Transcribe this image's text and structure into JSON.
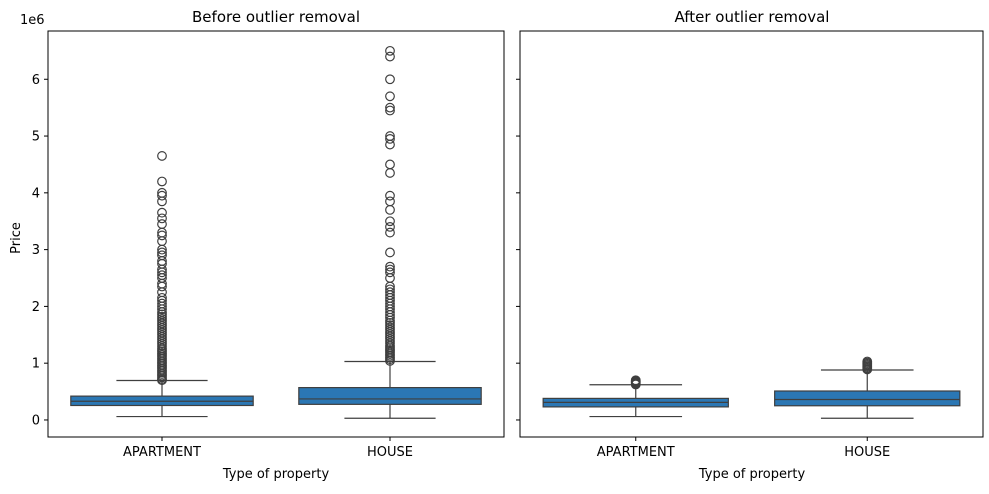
{
  "chart_data": [
    {
      "type": "box",
      "title": "Before outlier removal",
      "xlabel": "Type of property",
      "ylabel": "Price",
      "y_scale_label": "1e6",
      "categories": [
        "APARTMENT",
        "HOUSE"
      ],
      "ylim": [
        -300000,
        6850000
      ],
      "yticks": [
        0,
        1000000,
        2000000,
        3000000,
        4000000,
        5000000,
        6000000
      ],
      "ytick_labels": [
        "0",
        "1",
        "2",
        "3",
        "4",
        "5",
        "6"
      ],
      "grid": false,
      "box_color": "#2b77b4",
      "line_color": "#3f3f3f",
      "boxes": [
        {
          "category": "APARTMENT",
          "whisker_low": 60000,
          "q1": 255000,
          "median": 330000,
          "q3": 420000,
          "whisker_high": 695000,
          "outliers": [
            700000,
            720000,
            750000,
            780000,
            810000,
            840000,
            870000,
            900000,
            930000,
            960000,
            990000,
            1020000,
            1050000,
            1080000,
            1110000,
            1140000,
            1170000,
            1200000,
            1230000,
            1260000,
            1300000,
            1340000,
            1380000,
            1420000,
            1460000,
            1500000,
            1540000,
            1580000,
            1620000,
            1660000,
            1700000,
            1740000,
            1780000,
            1820000,
            1860000,
            1900000,
            1950000,
            2000000,
            2050000,
            2100000,
            2150000,
            2250000,
            2350000,
            2400000,
            2500000,
            2550000,
            2600000,
            2650000,
            2750000,
            2800000,
            2900000,
            2950000,
            3000000,
            3150000,
            3250000,
            3300000,
            3450000,
            3550000,
            3650000,
            3850000,
            3950000,
            4000000,
            4200000,
            4650000
          ]
        },
        {
          "category": "HOUSE",
          "whisker_low": 30000,
          "q1": 275000,
          "median": 370000,
          "q3": 570000,
          "whisker_high": 1030000,
          "outliers": [
            1040000,
            1070000,
            1100000,
            1130000,
            1160000,
            1190000,
            1220000,
            1250000,
            1280000,
            1310000,
            1350000,
            1390000,
            1430000,
            1470000,
            1510000,
            1550000,
            1590000,
            1630000,
            1670000,
            1710000,
            1750000,
            1800000,
            1850000,
            1900000,
            1950000,
            2000000,
            2050000,
            2100000,
            2150000,
            2200000,
            2250000,
            2300000,
            2350000,
            2500000,
            2600000,
            2650000,
            2700000,
            2950000,
            3300000,
            3400000,
            3500000,
            3700000,
            3850000,
            3950000,
            4350000,
            4500000,
            4850000,
            4950000,
            5000000,
            5450000,
            5500000,
            5700000,
            6000000,
            6400000,
            6500000
          ]
        }
      ]
    },
    {
      "type": "box",
      "title": "After outlier removal",
      "xlabel": "Type of property",
      "ylabel": "",
      "categories": [
        "APARTMENT",
        "HOUSE"
      ],
      "ylim": [
        -300000,
        6850000
      ],
      "yticks": [
        0,
        1000000,
        2000000,
        3000000,
        4000000,
        5000000,
        6000000
      ],
      "shared_y": true,
      "grid": false,
      "box_color": "#2b77b4",
      "line_color": "#3f3f3f",
      "boxes": [
        {
          "category": "APARTMENT",
          "whisker_low": 60000,
          "q1": 230000,
          "median": 310000,
          "q3": 380000,
          "whisker_high": 620000,
          "outliers": [
            625000,
            640000,
            655000,
            670000,
            685000,
            700000
          ]
        },
        {
          "category": "HOUSE",
          "whisker_low": 30000,
          "q1": 250000,
          "median": 360000,
          "q3": 510000,
          "whisker_high": 880000,
          "outliers": [
            890000,
            910000,
            930000,
            950000,
            970000,
            990000,
            1010000,
            1030000
          ]
        }
      ]
    }
  ]
}
